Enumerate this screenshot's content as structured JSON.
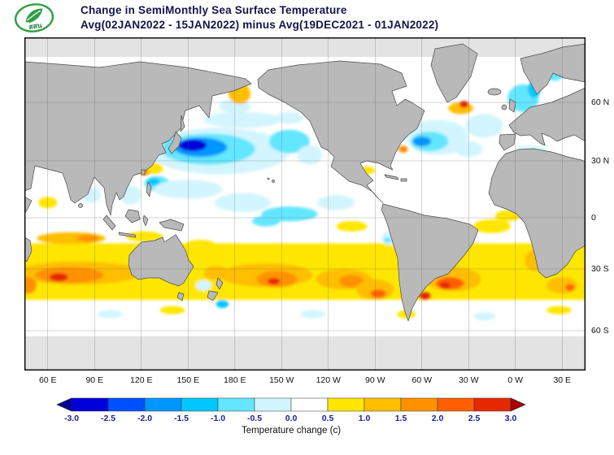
{
  "header": {
    "logo_text": "สสน",
    "title_line1": "Change in SemiMonthly Sea Surface Temperature",
    "title_line2": "Avg(02JAN2022 - 15JAN2022) minus Avg(19DEC2021 - 01JAN2022)"
  },
  "chart_data": {
    "type": "heatmap",
    "title": "Change in SemiMonthly Sea Surface Temperature",
    "subtitle": "Avg(02JAN2022 - 15JAN2022) minus Avg(19DEC2021 - 01JAN2022)",
    "projection": "global world map, pacific-centered, longitudes 45E eastward to 45E",
    "grid": "on, 30 degree graticule",
    "land_color": "#b9b9b9",
    "no_data_color": "#e3e3e3",
    "ocean_neutral_color": "#ffffff",
    "x_ticks": [
      {
        "label": "60 E",
        "lon": 60
      },
      {
        "label": "90 E",
        "lon": 90
      },
      {
        "label": "120 E",
        "lon": 120
      },
      {
        "label": "150 E",
        "lon": 150
      },
      {
        "label": "180 E",
        "lon": 180
      },
      {
        "label": "150 W",
        "lon": 210
      },
      {
        "label": "120 W",
        "lon": 240
      },
      {
        "label": "90 W",
        "lon": 270
      },
      {
        "label": "60 W",
        "lon": 300
      },
      {
        "label": "30 W",
        "lon": 330
      },
      {
        "label": "0 W",
        "lon": 360
      },
      {
        "label": "30 E",
        "lon": 390
      }
    ],
    "y_ticks": [
      {
        "label": "60 N",
        "lat": 60
      },
      {
        "label": "30 N",
        "lat": 30
      },
      {
        "label": "0",
        "lat": 0
      },
      {
        "label": "30 S",
        "lat": -30
      },
      {
        "label": "60 S",
        "lat": -60
      }
    ],
    "colorbar": {
      "label": "Temperature change  (c)",
      "tick_labels": [
        "-3.0",
        "-2.5",
        "-2.0",
        "-1.5",
        "-1.0",
        "-0.5",
        "0.0",
        "0.5",
        "1.0",
        "1.5",
        "2.0",
        "2.5",
        "3.0"
      ],
      "colors": [
        "#000096",
        "#0000dc",
        "#0050ff",
        "#0096ff",
        "#00c8ff",
        "#64e6ff",
        "#d2f5ff",
        "#ffffff",
        "#ffe600",
        "#ffbe00",
        "#ff9100",
        "#ff5f00",
        "#e62800",
        "#aa0000"
      ]
    },
    "anomalies": [
      {
        "region": "northwest-pacific-cool-outer",
        "lon": 170,
        "lat": 35,
        "rlon": 45,
        "rlat": 12,
        "value": -0.3
      },
      {
        "region": "northwest-pacific-cool-mid",
        "lon": 163,
        "lat": 36,
        "rlon": 30,
        "rlat": 8,
        "value": -0.8
      },
      {
        "region": "northwest-pacific-cool-strong",
        "lon": 158,
        "lat": 37,
        "rlon": 17,
        "rlat": 5,
        "value": -1.7
      },
      {
        "region": "northwest-pacific-cool-core",
        "lon": 153,
        "lat": 38,
        "rlon": 9,
        "rlat": 3,
        "value": -2.6
      },
      {
        "region": "kuroshio-warm-streak",
        "lon": 128,
        "lat": 26,
        "rlon": 6,
        "rlat": 3,
        "value": 0.8
      },
      {
        "region": "taiwan-warm-spot",
        "lon": 122,
        "lat": 24,
        "rlon": 3,
        "rlat": 1.8,
        "value": 1.6
      },
      {
        "region": "east-china-sea-cool",
        "lon": 124,
        "lat": 31,
        "rlon": 4,
        "rlat": 2.5,
        "value": -0.8
      },
      {
        "region": "japan-sea-cool",
        "lon": 135,
        "lat": 42,
        "rlon": 5,
        "rlat": 3,
        "value": -0.6
      },
      {
        "region": "philippine-sea-cool",
        "lon": 130,
        "lat": 18,
        "rlon": 8,
        "rlat": 4,
        "value": -0.6
      },
      {
        "region": "philippine-sea-cool-core",
        "lon": 128,
        "lat": 19,
        "rlon": 4,
        "rlat": 2,
        "value": -1.3
      },
      {
        "region": "south-china-sea-cool",
        "lon": 113,
        "lat": 12,
        "rlon": 7,
        "rlat": 5,
        "value": -0.5
      },
      {
        "region": "north-pacific-50n-cool",
        "lon": 185,
        "lat": 51,
        "rlon": 25,
        "rlat": 4,
        "value": -0.4
      },
      {
        "region": "bering-sea-cool",
        "lon": 180,
        "lat": 58,
        "rlon": 10,
        "rlat": 3,
        "value": -0.4
      },
      {
        "region": "bering-warm-spot",
        "lon": 183,
        "lat": 62,
        "rlon": 7,
        "rlat": 2.5,
        "value": 1.0
      },
      {
        "region": "gulf-of-alaska-cool",
        "lon": 215,
        "lat": 52,
        "rlon": 9,
        "rlat": 3,
        "value": -0.4
      },
      {
        "region": "northeast-pacific-cool",
        "lon": 215,
        "lat": 40,
        "rlon": 13,
        "rlat": 6,
        "value": -0.7
      },
      {
        "region": "california-coast-cool",
        "lon": 228,
        "lat": 33,
        "rlon": 8,
        "rlat": 5,
        "value": -0.4
      },
      {
        "region": "north-pacific-tropics-cool-1",
        "lon": 150,
        "lat": 15,
        "rlon": 22,
        "rlat": 5,
        "value": -0.4
      },
      {
        "region": "north-pacific-tropics-cool-2",
        "lon": 185,
        "lat": 8,
        "rlon": 18,
        "rlat": 5,
        "value": -0.4
      },
      {
        "region": "equatorial-pacific-cool",
        "lon": 215,
        "lat": 2,
        "rlon": 18,
        "rlat": 4,
        "value": -0.6
      },
      {
        "region": "equatorial-pacific-cool-core",
        "lon": 200,
        "lat": -2,
        "rlon": 9,
        "rlat": 3,
        "value": -0.9
      },
      {
        "region": "east-pacific-itcz-cool",
        "lon": 245,
        "lat": 8,
        "rlon": 12,
        "rlat": 4,
        "value": -0.4
      },
      {
        "region": "bay-of-bengal-cool",
        "lon": 88,
        "lat": 12,
        "rlon": 6,
        "rlat": 4,
        "value": -0.4
      },
      {
        "region": "arabian-sea-warm-specks",
        "lon": 60,
        "lat": 8,
        "rlon": 6,
        "rlat": 3,
        "value": 0.6
      },
      {
        "region": "gulf-of-mexico-warm",
        "lon": 265,
        "lat": 25,
        "rlon": 5,
        "rlat": 2,
        "value": 0.6
      },
      {
        "region": "southern-warm-band",
        "shape": "band",
        "lon": 225,
        "lat": -30,
        "rlon": 180,
        "rlat": 15,
        "value": 0.7
      },
      {
        "region": "coral-sea-warm",
        "lon": 158,
        "lat": -16,
        "rlon": 10,
        "rlat": 3,
        "value": 0.7
      },
      {
        "region": "north-australia-warm",
        "lon": 122,
        "lat": -11,
        "rlon": 12,
        "rlat": 3,
        "value": 0.8
      },
      {
        "region": "tropical-indian-warm-streak",
        "lon": 75,
        "lat": -12,
        "rlon": 22,
        "rlat": 3.5,
        "value": 1.2
      },
      {
        "region": "tropical-indian-warm-core",
        "lon": 86,
        "lat": -12,
        "rlon": 7,
        "rlat": 2,
        "value": 1.7
      },
      {
        "region": "south-indian-warm",
        "lon": 80,
        "lat": -32,
        "rlon": 40,
        "rlat": 6,
        "value": 1.3
      },
      {
        "region": "south-indian-warm-core",
        "lon": 74,
        "lat": -33,
        "rlon": 22,
        "rlat": 4,
        "value": 1.8
      },
      {
        "region": "south-indian-hot-spot",
        "lon": 67,
        "lat": -34,
        "rlon": 6,
        "rlat": 2,
        "value": 2.6
      },
      {
        "region": "agulhas-warm",
        "lon": 47,
        "lat": -38,
        "rlon": 6,
        "rlat": 4,
        "value": 1.6
      },
      {
        "region": "tasman-warm",
        "lon": 168,
        "lat": -32,
        "rlon": 8,
        "rlat": 3.5,
        "value": 1.4
      },
      {
        "region": "nz-south-cool",
        "lon": 172,
        "lat": -47,
        "rlon": 4,
        "rlat": 2,
        "value": -1.2
      },
      {
        "region": "tasman-southeast-cool",
        "lon": 160,
        "lat": -38,
        "rlon": 5,
        "rlat": 2.5,
        "value": -0.5
      },
      {
        "region": "south-pacific-warm",
        "lon": 200,
        "lat": -33,
        "rlon": 30,
        "rlat": 6,
        "value": 1.3
      },
      {
        "region": "south-pacific-warm-core",
        "lon": 207,
        "lat": -35,
        "rlon": 13,
        "rlat": 4,
        "value": 1.8
      },
      {
        "region": "south-pacific-hot-spot",
        "lon": 205,
        "lat": -36,
        "rlon": 4,
        "rlat": 1.6,
        "value": 2.6
      },
      {
        "region": "southeast-pacific-warm",
        "lon": 250,
        "lat": -35,
        "rlon": 18,
        "rlat": 5,
        "value": 1.3
      },
      {
        "region": "southeast-pacific-warm-core",
        "lon": 255,
        "lat": -36,
        "rlon": 8,
        "rlat": 3,
        "value": 1.8
      },
      {
        "region": "chile-coast-warm",
        "lon": 270,
        "lat": -40,
        "rlon": 12,
        "rlat": 5,
        "value": 1.3
      },
      {
        "region": "chile-coast-warm-core",
        "lon": 272,
        "lat": -42,
        "rlon": 5,
        "rlat": 2,
        "value": 2.3
      },
      {
        "region": "argentina-shelf-hot-spot",
        "lon": 302,
        "lat": -43,
        "rlon": 4,
        "rlat": 2,
        "value": 2.6
      },
      {
        "region": "south-atlantic-warm",
        "lon": 320,
        "lat": -35,
        "rlon": 18,
        "rlat": 6,
        "value": 1.3
      },
      {
        "region": "south-atlantic-warm-core",
        "lon": 318,
        "lat": -37,
        "rlon": 9,
        "rlat": 3,
        "value": 2.0
      },
      {
        "region": "south-atlantic-hot-spot",
        "lon": 315,
        "lat": -38,
        "rlon": 3.5,
        "rlat": 1.6,
        "value": 2.7
      },
      {
        "region": "benguela-warm",
        "lon": 372,
        "lat": -25,
        "rlon": 6,
        "rlat": 6,
        "value": 1.0
      },
      {
        "region": "agulhas-retroflection-warm",
        "lon": 390,
        "lat": -38,
        "rlon": 10,
        "rlat": 4,
        "value": 1.4
      },
      {
        "region": "agulhas-hot-spot",
        "lon": 395,
        "lat": -39,
        "rlon": 3,
        "rlat": 1.6,
        "value": 2.4
      },
      {
        "region": "equatorial-atlantic-warm",
        "lon": 345,
        "lat": -5,
        "rlon": 12,
        "rlat": 4,
        "value": 0.6
      },
      {
        "region": "gulf-of-guinea-warm",
        "lon": 355,
        "lat": 1,
        "rlon": 8,
        "rlat": 3,
        "value": 0.5
      },
      {
        "region": "peru-coast-cool",
        "lon": 280,
        "lat": -12,
        "rlon": 6,
        "rlat": 4,
        "value": -0.4
      },
      {
        "region": "peru-coast-cool-core",
        "lon": 278,
        "lat": -13,
        "rlon": 2.5,
        "rlat": 1.5,
        "value": -0.9
      },
      {
        "region": "hawaii-east-warm-specks",
        "lon": 255,
        "lat": -5,
        "rlon": 10,
        "rlat": 3,
        "value": 0.6
      },
      {
        "region": "north-atlantic-cool-outer",
        "lon": 310,
        "lat": 42,
        "rlon": 20,
        "rlat": 9,
        "value": -0.4
      },
      {
        "region": "north-atlantic-cool-mid",
        "lon": 305,
        "lat": 40,
        "rlon": 12,
        "rlat": 5,
        "value": -1.0
      },
      {
        "region": "north-atlantic-cool-core",
        "lon": 300,
        "lat": 40,
        "rlon": 6,
        "rlat": 2.5,
        "value": -2.0
      },
      {
        "region": "gulf-stream-warm-spot",
        "lon": 288,
        "lat": 36,
        "rlon": 3,
        "rlat": 1.8,
        "value": 1.6
      },
      {
        "region": "newfoundland-warm-spot",
        "lon": 325,
        "lat": 57,
        "rlon": 8,
        "rlat": 3,
        "value": 1.3
      },
      {
        "region": "north-atlantic-hot-spot",
        "lon": 327,
        "lat": 59,
        "rlon": 3,
        "rlat": 1.5,
        "value": 2.6
      },
      {
        "region": "northeast-atlantic-cool",
        "lon": 340,
        "lat": 48,
        "rlon": 12,
        "rlat": 6,
        "value": -0.5
      },
      {
        "region": "azores-cool",
        "lon": 330,
        "lat": 36,
        "rlon": 9,
        "rlat": 4,
        "value": -0.4
      },
      {
        "region": "norwegian-sea-cool",
        "lon": 365,
        "lat": 61,
        "rlon": 10,
        "rlat": 4,
        "value": -0.7
      },
      {
        "region": "norwegian-sea-cool-core",
        "lon": 372,
        "lat": 63,
        "rlon": 4,
        "rlat": 2,
        "value": -1.4
      },
      {
        "region": "barents-sea-cool",
        "lon": 385,
        "lat": 68,
        "rlon": 8,
        "rlat": 3,
        "value": -0.8
      },
      {
        "region": "mediterranean-cool",
        "lon": 370,
        "lat": 36,
        "rlon": 10,
        "rlat": 1.8,
        "value": -0.4
      },
      {
        "region": "southern-ocean-speck-1",
        "lon": 100,
        "lat": -52,
        "rlon": 8,
        "rlat": 2,
        "value": -0.4
      },
      {
        "region": "southern-ocean-speck-2",
        "lon": 140,
        "lat": -50,
        "rlon": 8,
        "rlat": 2,
        "value": 0.6
      },
      {
        "region": "southern-ocean-speck-3",
        "lon": 230,
        "lat": -52,
        "rlon": 8,
        "rlat": 2,
        "value": -0.4
      },
      {
        "region": "southern-ocean-speck-4",
        "lon": 290,
        "lat": -52,
        "rlon": 6,
        "rlat": 2,
        "value": 0.6
      },
      {
        "region": "southern-ocean-speck-5",
        "lon": 340,
        "lat": -53,
        "rlon": 7,
        "rlat": 2,
        "value": -0.4
      },
      {
        "region": "southern-ocean-speck-6",
        "lon": 388,
        "lat": -50,
        "rlon": 8,
        "rlat": 2,
        "value": 0.5
      }
    ]
  }
}
